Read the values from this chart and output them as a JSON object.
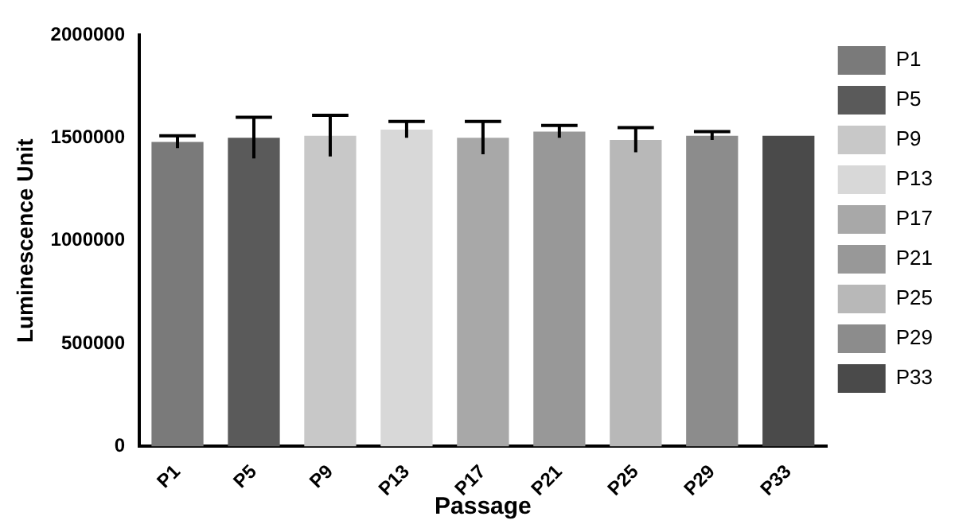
{
  "chart_data": {
    "type": "bar",
    "xlabel": "Passage",
    "ylabel": "Luminescence Unit",
    "categories": [
      "P1",
      "P5",
      "P9",
      "P13",
      "P17",
      "P21",
      "P25",
      "P29",
      "P33"
    ],
    "series": [
      {
        "name": "P1",
        "color": "#7a7a7a",
        "values": [
          1480000,
          null,
          null,
          null,
          null,
          null,
          null,
          null,
          null
        ],
        "errors": [
          30000,
          null,
          null,
          null,
          null,
          null,
          null,
          null,
          null
        ]
      },
      {
        "name": "P5",
        "color": "#5a5a5a",
        "values": [
          null,
          1500000,
          null,
          null,
          null,
          null,
          null,
          null,
          null
        ],
        "errors": [
          null,
          100000,
          null,
          null,
          null,
          null,
          null,
          null,
          null
        ]
      },
      {
        "name": "P9",
        "color": "#c8c8c8",
        "values": [
          null,
          null,
          1510000,
          null,
          null,
          null,
          null,
          null,
          null
        ],
        "errors": [
          null,
          null,
          100000,
          null,
          null,
          null,
          null,
          null,
          null
        ]
      },
      {
        "name": "P13",
        "color": "#d8d8d8",
        "values": [
          null,
          null,
          null,
          1540000,
          null,
          null,
          null,
          null,
          null
        ],
        "errors": [
          null,
          null,
          null,
          40000,
          null,
          null,
          null,
          null,
          null
        ]
      },
      {
        "name": "P17",
        "color": "#a8a8a8",
        "values": [
          null,
          null,
          null,
          null,
          1500000,
          null,
          null,
          null,
          null
        ],
        "errors": [
          null,
          null,
          null,
          null,
          80000,
          null,
          null,
          null,
          null
        ]
      },
      {
        "name": "P21",
        "color": "#989898",
        "values": [
          null,
          null,
          null,
          null,
          null,
          1530000,
          null,
          null,
          null
        ],
        "errors": [
          null,
          null,
          null,
          null,
          null,
          30000,
          null,
          null,
          null
        ]
      },
      {
        "name": "P25",
        "color": "#b8b8b8",
        "values": [
          null,
          null,
          null,
          null,
          null,
          null,
          1490000,
          null,
          null
        ],
        "errors": [
          null,
          null,
          null,
          null,
          null,
          null,
          60000,
          null,
          null
        ]
      },
      {
        "name": "P29",
        "color": "#8c8c8c",
        "values": [
          null,
          null,
          null,
          null,
          null,
          null,
          null,
          1510000,
          null
        ],
        "errors": [
          null,
          null,
          null,
          null,
          null,
          null,
          null,
          20000,
          null
        ]
      },
      {
        "name": "P33",
        "color": "#4a4a4a",
        "values": [
          null,
          null,
          null,
          null,
          null,
          null,
          null,
          null,
          1510000
        ]
      }
    ],
    "ylim": [
      0,
      2000000
    ],
    "yticks": [
      0,
      500000,
      1000000,
      1500000,
      2000000
    ],
    "grid": false,
    "legend": "right"
  }
}
